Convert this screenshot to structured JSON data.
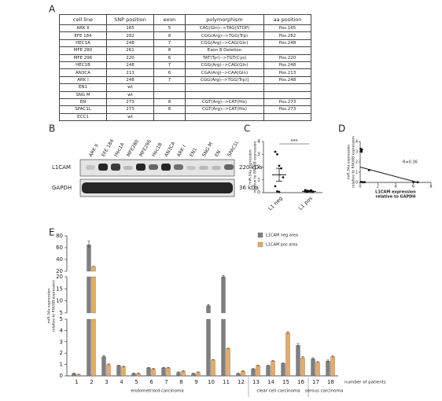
{
  "panel_labels": [
    "A",
    "B",
    "C",
    "D",
    "E"
  ],
  "table": {
    "header": [
      "cell line",
      "SNP position",
      "exon",
      "polymorphism",
      "aa position"
    ],
    "rows": [
      [
        "ARK II",
        "165",
        "5",
        "CAG(Gln)-->TAG(STOP)",
        "Pos.165"
      ],
      [
        "EFE 184",
        "282",
        "8",
        "CGG(Arg)-->TGG(Trp)",
        "Pos.282"
      ],
      [
        "HEC1A",
        "248",
        "7",
        "CGG(Arg)-->CAG(Gln)",
        "Pos.248"
      ],
      [
        "MFE 280",
        "261",
        "8",
        "Exon  8 Deletion"
      ],
      [
        "MFE 296",
        "220",
        "6",
        "TAT(Tyr)-->TGT(Cys)",
        "Pos.220"
      ],
      [
        "HEC1B",
        "248",
        "7",
        "CGG(Arg)-->CAG(Gln)",
        "Pos.248"
      ],
      [
        "AN3CA",
        "213",
        "6",
        "CGA(Arg)-->CAA(Gln)",
        "Pos.213"
      ],
      [
        "ARK I",
        "248",
        "7",
        "CGG(Arg)-->TGG(Trp)]",
        "Pos.248"
      ],
      [
        "EN1",
        "wt"
      ],
      [
        "SNG M",
        "wt"
      ],
      [
        "EN",
        "273",
        "8",
        "CGT(Arg)-->CAT(His)",
        "Pos.273"
      ],
      [
        "SPAC1L",
        "273",
        "8",
        "CGT(Arg)-->CAT(His)",
        "Pos.273"
      ],
      [
        "ECC1",
        "wt"
      ]
    ]
  },
  "blot": {
    "lanes": [
      "ARK II",
      "EFE 184",
      "Hec1A",
      "MFE280",
      "MFE296",
      "Hec1B",
      "AN3CA",
      "ARK I",
      "EN1",
      "SNG M",
      "EN",
      "SPAC1L"
    ],
    "rows": [
      {
        "name": "L1CAM",
        "size": "220 kDa"
      },
      {
        "name": "GAPDH",
        "size": "36 kDa"
      }
    ]
  },
  "chart_data": [
    {
      "type": "dot",
      "ylabel": [
        "miR-34a expression",
        "relative to RNU6B expression"
      ],
      "categories": [
        "L1 neg",
        "L1 pos"
      ],
      "points": [
        [
          3.2,
          3.0,
          2.1,
          1.9,
          1.2,
          0.5,
          0.1,
          0.05
        ],
        [
          0.2,
          0.15,
          0.12,
          0.1,
          0.08,
          0.1,
          0.05,
          0.12,
          0.18,
          0.06
        ]
      ],
      "means": [
        1.4,
        0.1
      ],
      "errors": [
        0.5,
        0.03
      ],
      "ylim": [
        0,
        4
      ],
      "yticks": [
        0,
        1,
        2,
        3,
        4
      ],
      "annotation": "***"
    },
    {
      "type": "scatter",
      "ylabel": [
        "miR-34a expression",
        "relative to RNU6B expression"
      ],
      "xlabel": [
        "L1CAM expression",
        "relative to GAPDH"
      ],
      "x": [
        0.05,
        0.1,
        0.15,
        0.2,
        1,
        6,
        6.5,
        0.1,
        0.3,
        0.5
      ],
      "y": [
        3.3,
        3.1,
        3.0,
        3.2,
        1.2,
        0.05,
        0.02,
        0.05,
        0.02,
        0.03
      ],
      "fit": {
        "x": [
          0,
          6.5
        ],
        "y": [
          1.5,
          0
        ]
      },
      "xlim": [
        0,
        8
      ],
      "xticks": [
        0,
        2,
        4,
        6,
        8
      ],
      "ylim": [
        0,
        4
      ],
      "yticks": [
        0,
        1,
        2,
        3,
        4
      ],
      "annotation": "R=0.36"
    },
    {
      "type": "bar",
      "ylabel": [
        "miR-34a expression",
        "relative to RNU6B expression"
      ],
      "xlabel": "number of patients",
      "categories": [
        "1",
        "2",
        "3",
        "4",
        "5",
        "6",
        "7",
        "8",
        "9",
        "10",
        "11",
        "12",
        "13",
        "14",
        "15",
        "16",
        "17",
        "18"
      ],
      "series": [
        {
          "name": "L1CAM neg area",
          "color": "#7f7f7f",
          "values": [
            0.2,
            65,
            1.7,
            0.9,
            0.2,
            0.7,
            0.7,
            0.3,
            0.2,
            8,
            20,
            0.2,
            0.6,
            0.9,
            1.1,
            2.7,
            1.5,
            1.3
          ],
          "errors": [
            0.05,
            6,
            0.1,
            0.05,
            0.05,
            0.05,
            0.05,
            0.05,
            0.05,
            0.5,
            0.6,
            0.05,
            0.05,
            0.05,
            0.05,
            0.15,
            0.1,
            0.1
          ]
        },
        {
          "name": "L1CAM pos area",
          "color": "#e9a964",
          "values": [
            0.1,
            28,
            1.0,
            0.8,
            0.2,
            0.6,
            0.7,
            0.4,
            0.3,
            1.4,
            2.4,
            0.4,
            0.9,
            1.3,
            3.8,
            1.6,
            1.2,
            1.7
          ],
          "errors": [
            0.05,
            0.3,
            0.05,
            0.05,
            0.05,
            0.05,
            0.05,
            0.05,
            0.05,
            0.05,
            0.05,
            0.05,
            0.05,
            0.05,
            0.1,
            0.1,
            0.05,
            0.05
          ]
        }
      ],
      "segments": [
        {
          "ylim": [
            0,
            5
          ],
          "yticks": [
            0,
            1,
            2,
            3,
            4,
            5
          ]
        },
        {
          "ylim": [
            5,
            20
          ],
          "yticks": [
            5,
            10,
            15,
            20
          ]
        },
        {
          "ylim": [
            20,
            80
          ],
          "yticks": [
            20,
            40,
            60,
            80
          ]
        }
      ],
      "groups": [
        "endometrioid carcinoma",
        "clear cell carcinoma",
        "serous carcinoma"
      ]
    }
  ]
}
